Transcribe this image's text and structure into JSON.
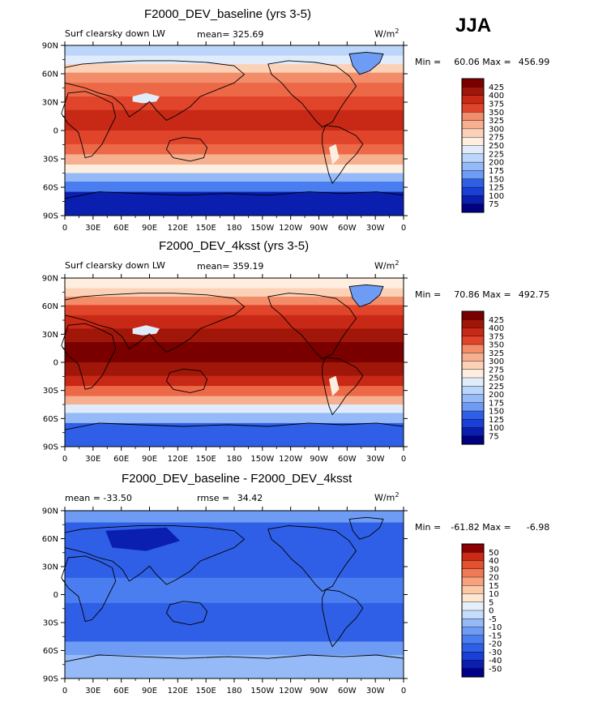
{
  "season": "JJA",
  "colors": {
    "warm_ramp": [
      "#000080",
      "#0a1fb0",
      "#1a3fd6",
      "#2f5fe6",
      "#4a7ef0",
      "#6e9cf4",
      "#95baf7",
      "#bcd5fa",
      "#e0ecfb",
      "#fdeee0",
      "#fbd2b8",
      "#f7b08f",
      "#f28c69",
      "#ec6847",
      "#e0442a",
      "#c82816",
      "#a01608",
      "#7a0000"
    ],
    "diff_ramp": [
      "#00008a",
      "#0a1fb0",
      "#1a3fd6",
      "#2f5fe6",
      "#4a7ef0",
      "#6e9cf4",
      "#95baf7",
      "#c7dcfa",
      "#e6effc",
      "#fde6d2",
      "#fbc9a7",
      "#f6a27c",
      "#f07a55",
      "#e4512f",
      "#c92a14",
      "#8b0000"
    ]
  },
  "panels": [
    {
      "title": "F2000_DEV_baseline (yrs 3-5)",
      "variable": "Surf clearsky down LW",
      "stat_label": "mean=",
      "stat_value": "325.69",
      "units": "W/m",
      "units_exp": "2",
      "minmax_min_label": "Min =",
      "minmax_min": "60.06",
      "minmax_max_label": "Max =",
      "minmax_max": "456.99",
      "colorbar_labels": [
        "425",
        "400",
        "375",
        "350",
        "325",
        "300",
        "275",
        "250",
        "225",
        "200",
        "175",
        "150",
        "125",
        "100",
        "75"
      ],
      "intensity": 0.0
    },
    {
      "title": "F2000_DEV_4ksst (yrs 3-5)",
      "variable": "Surf clearsky down LW",
      "stat_label": "mean=",
      "stat_value": "359.19",
      "units": "W/m",
      "units_exp": "2",
      "minmax_min_label": "Min =",
      "minmax_min": "70.86",
      "minmax_max_label": "Max =",
      "minmax_max": "492.75",
      "colorbar_labels": [
        "425",
        "400",
        "375",
        "350",
        "325",
        "300",
        "275",
        "250",
        "225",
        "200",
        "175",
        "150",
        "125",
        "100",
        "75"
      ],
      "intensity": 1.0
    },
    {
      "title": "F2000_DEV_baseline - F2000_DEV_4ksst",
      "stat_label": "mean =",
      "stat_value": "-33.50",
      "stat2_label": "rmse =",
      "stat2_value": "34.42",
      "units": "W/m",
      "units_exp": "2",
      "minmax_min_label": "Min =",
      "minmax_min": "-61.82",
      "minmax_max_label": "Max =",
      "minmax_max": "-6.98",
      "colorbar_labels": [
        "50",
        "40",
        "30",
        "20",
        "15",
        "10",
        "5",
        "0",
        "-5",
        "-10",
        "-15",
        "-20",
        "-30",
        "-40",
        "-50"
      ]
    }
  ],
  "lat_labels": [
    "90N",
    "60N",
    "30N",
    "0",
    "30S",
    "60S",
    "90S"
  ],
  "lon_labels": [
    "0",
    "30E",
    "60E",
    "90E",
    "120E",
    "150E",
    "180",
    "150W",
    "120W",
    "90W",
    "60W",
    "30W",
    "0"
  ]
}
